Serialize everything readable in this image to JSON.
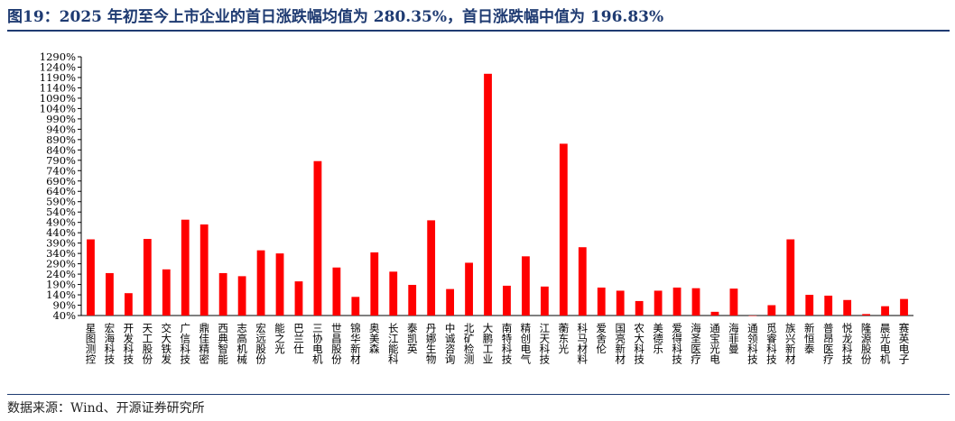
{
  "title": "图19：2025 年初至今上市企业的首日涨跌幅均值为 280.35%，首日涨跌幅中值为 196.83%",
  "source": "数据来源：Wind、开源证券研究所",
  "colors": {
    "bar": "#ff0000",
    "title": "#1f3b72",
    "axis": "#000000"
  },
  "chart_data": {
    "type": "bar",
    "title": "",
    "xlabel": "",
    "ylabel": "",
    "ylim": [
      40,
      1290
    ],
    "ytick_step": 50,
    "y_tick_labels": [
      "40%",
      "90%",
      "140%",
      "190%",
      "240%",
      "290%",
      "340%",
      "390%",
      "440%",
      "490%",
      "540%",
      "590%",
      "640%",
      "690%",
      "740%",
      "790%",
      "840%",
      "890%",
      "940%",
      "990%",
      "1040%",
      "1090%",
      "1140%",
      "1190%",
      "1240%",
      "1290%"
    ],
    "grid": false,
    "legend": "none",
    "categories": [
      "星图测控",
      "宏海科技",
      "开发科技",
      "天工股份",
      "交大铁发",
      "广信科技",
      "鼎佳精密",
      "西典智能",
      "志高机械",
      "宏远股份",
      "能之光",
      "巴兰仕",
      "三协电机",
      "世昌股份",
      "锦华新材",
      "奥美森",
      "长江能科",
      "泰凯英",
      "丹娜生物",
      "中诚咨询",
      "北矿检测",
      "大鹏工业",
      "南特科技",
      "精创电气",
      "江天科技",
      "蘅东光",
      "科马材料",
      "爱舍伦",
      "国亮新材",
      "农大科技",
      "美德乐",
      "爱得科技",
      "海圣医疗",
      "通宝光电",
      "海菲曼",
      "通领科技",
      "觅睿科技",
      "族兴新材",
      "新恒泰",
      "普昂医疗",
      "悦龙科技",
      "隆源股份",
      "晨光电机",
      "赛英电子"
    ],
    "values": [
      408,
      245,
      148,
      410,
      263,
      503,
      480,
      245,
      230,
      355,
      340,
      205,
      786,
      272,
      130,
      345,
      252,
      188,
      500,
      168,
      295,
      1208,
      184,
      326,
      180,
      870,
      370,
      175,
      160,
      110,
      160,
      175,
      172,
      58,
      170,
      40,
      90,
      408,
      140,
      136,
      115,
      47,
      85,
      120
    ]
  }
}
